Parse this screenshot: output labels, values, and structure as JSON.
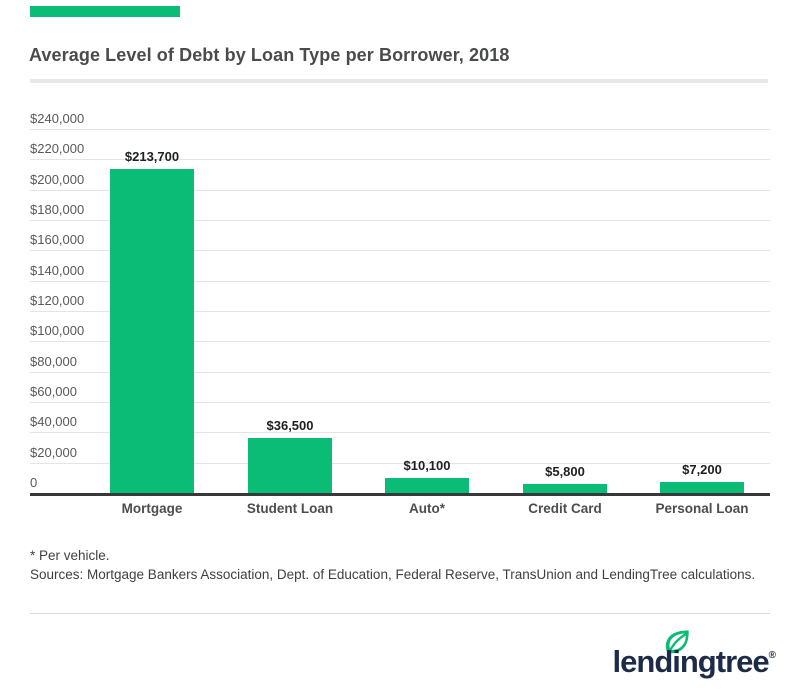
{
  "accent_color": "#0abc76",
  "header": {
    "title": "Average Level of Debt by Loan Type per Borrower, 2018"
  },
  "chart_data": {
    "type": "bar",
    "title": "Average Level of Debt by Loan Type per Borrower, 2018",
    "categories": [
      "Mortgage",
      "Student Loan",
      "Auto*",
      "Credit Card",
      "Personal Loan"
    ],
    "values": [
      213700,
      36500,
      10100,
      5800,
      7200
    ],
    "value_labels": [
      "$213,700",
      "$36,500",
      "$10,100",
      "$5,800",
      "$7,200"
    ],
    "y_ticks": [
      {
        "value": 240000,
        "label": "$240,000"
      },
      {
        "value": 220000,
        "label": "$220,000"
      },
      {
        "value": 200000,
        "label": "$200,000"
      },
      {
        "value": 180000,
        "label": "$180,000"
      },
      {
        "value": 160000,
        "label": "$160,000"
      },
      {
        "value": 140000,
        "label": "$140,000"
      },
      {
        "value": 120000,
        "label": "$120,000"
      },
      {
        "value": 100000,
        "label": "$100,000"
      },
      {
        "value": 80000,
        "label": "$80,000"
      },
      {
        "value": 60000,
        "label": "$60,000"
      },
      {
        "value": 40000,
        "label": "$40,000"
      },
      {
        "value": 20000,
        "label": "$20,000"
      },
      {
        "value": 0,
        "label": "0"
      }
    ],
    "ylim": [
      0,
      240000
    ],
    "xlabel": "",
    "ylabel": "",
    "grid": true,
    "legend": "none",
    "bar_color": "#0abc76",
    "gridline_color": "#e3e4e5",
    "axis_color": "#38393b"
  },
  "footnotes": {
    "note1": "* Per vehicle.",
    "note2": "Sources: Mortgage Bankers Association, Dept. of Education, Federal Reserve, TransUnion and LendingTree calculations."
  },
  "logo": {
    "brand": "lendingtree",
    "registered": "®",
    "text_color": "#1d2b49",
    "leaf_color": "#0abc76"
  }
}
